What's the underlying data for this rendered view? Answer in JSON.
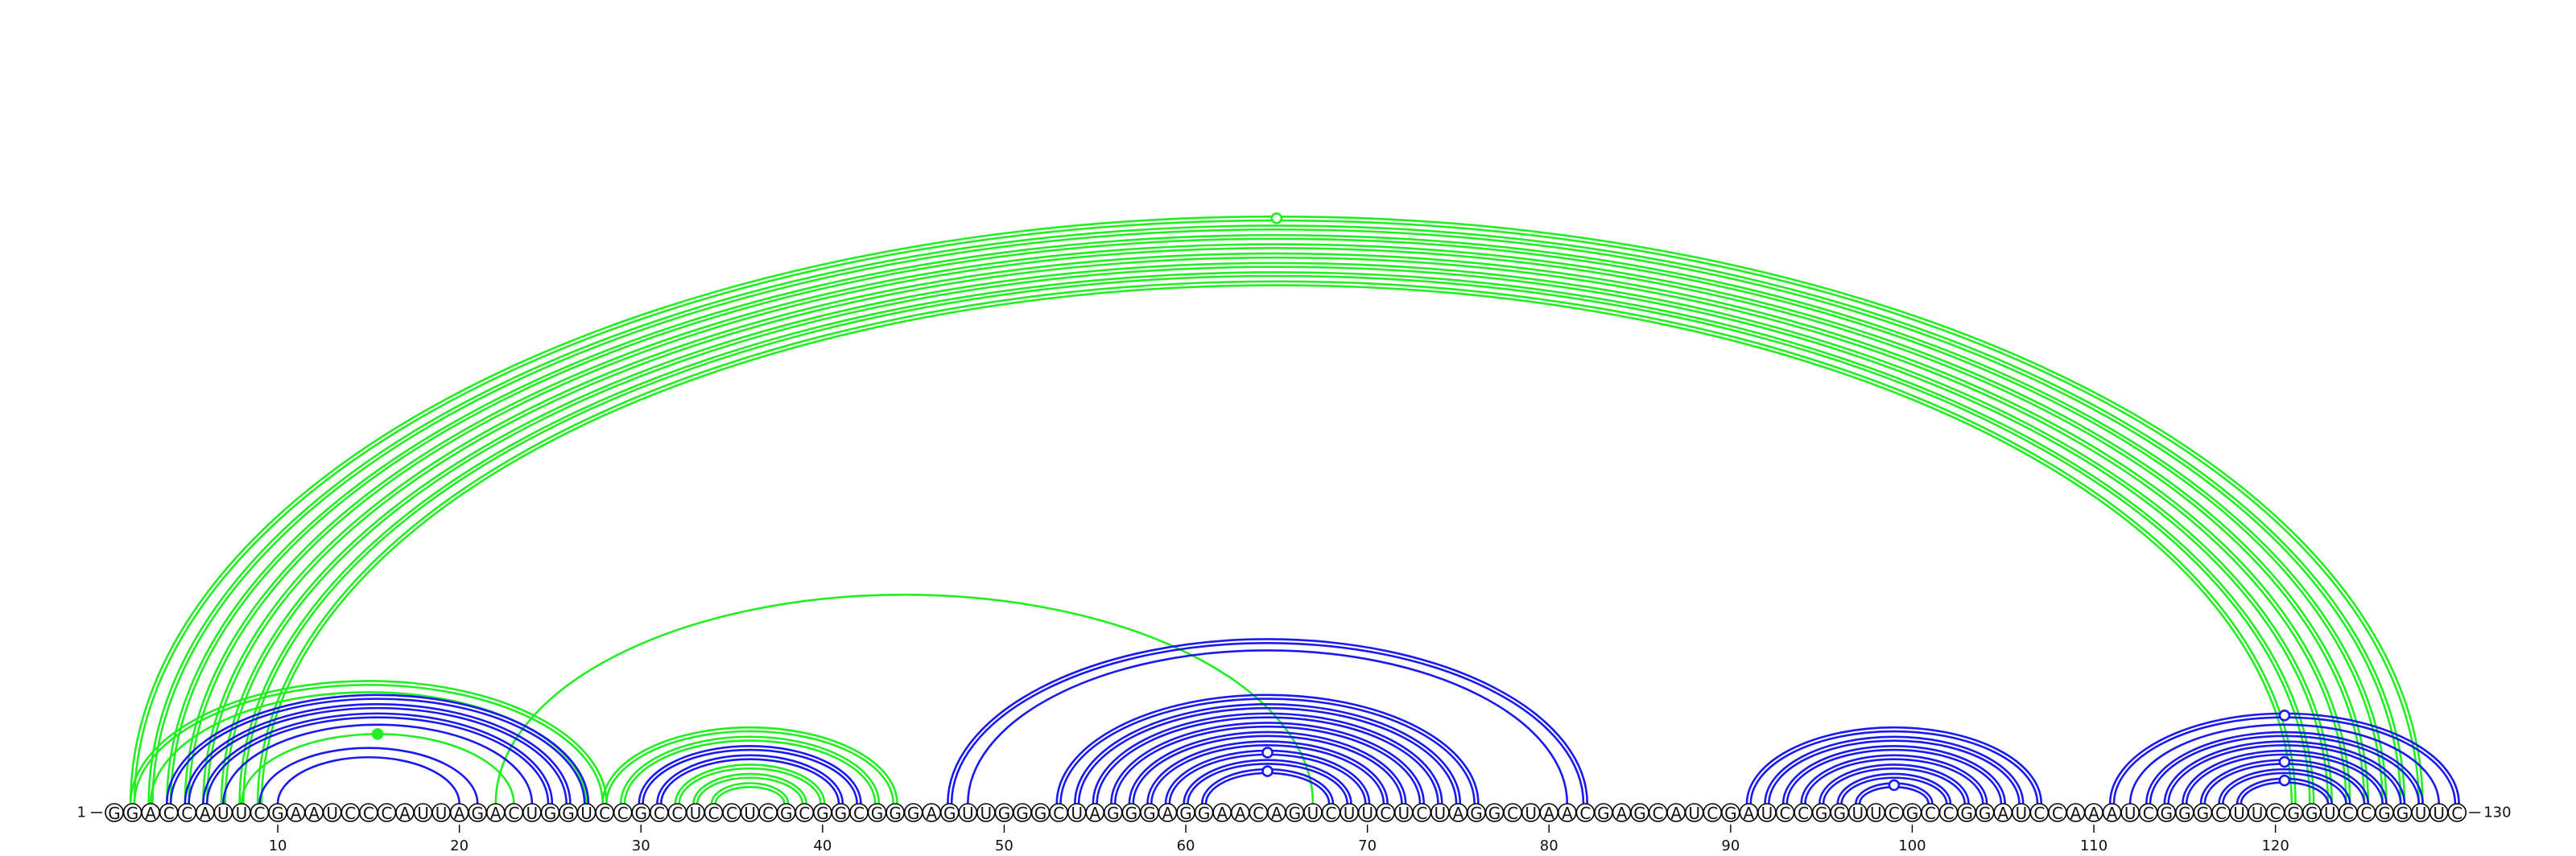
{
  "sequence": "GGACCAUUCGAAUCCCAUUAGACUGGUCCGCCUCCUCGCGGCGGGAGUUGGGCUAGGGAGGAACAGUCUUCUCUAGGCUAACGAGCAUCGAUCCGGUUCGCCGGAUCCAAAUCGGGCUUCGGUCCGGUUC",
  "start_label": "1",
  "end_label": "130",
  "ticks": [
    10,
    20,
    30,
    40,
    50,
    60,
    70,
    80,
    90,
    100,
    110,
    120
  ],
  "colors": {
    "green": "#22ee22",
    "blue": "#1a1aee"
  },
  "arcs": [
    {
      "i": 2,
      "j": 128,
      "color": "green",
      "double": true
    },
    {
      "i": 3,
      "j": 127,
      "color": "green",
      "double": true
    },
    {
      "i": 4,
      "j": 126,
      "color": "green",
      "double": true
    },
    {
      "i": 5,
      "j": 125,
      "color": "green",
      "double": true
    },
    {
      "i": 6,
      "j": 124,
      "color": "green",
      "double": true
    },
    {
      "i": 7,
      "j": 123,
      "color": "green",
      "double": true
    },
    {
      "i": 8,
      "j": 122,
      "color": "green",
      "double": true
    },
    {
      "i": 9,
      "j": 121,
      "color": "green",
      "double": true
    },
    {
      "i": 22,
      "j": 67,
      "color": "green",
      "double": false
    },
    {
      "i": 2,
      "j": 28,
      "color": "green",
      "double": true
    },
    {
      "i": 3,
      "j": 27,
      "color": "green",
      "double": false
    },
    {
      "i": 4,
      "j": 27,
      "color": "blue",
      "double": true
    },
    {
      "i": 5,
      "j": 26,
      "color": "blue",
      "double": true
    },
    {
      "i": 6,
      "j": 25,
      "color": "blue",
      "double": true
    },
    {
      "i": 7,
      "j": 24,
      "color": "blue",
      "double": false
    },
    {
      "i": 8,
      "j": 23,
      "color": "green",
      "double": false
    },
    {
      "i": 9,
      "j": 21,
      "color": "blue",
      "double": false
    },
    {
      "i": 10,
      "j": 20,
      "color": "blue",
      "double": false
    },
    {
      "i": 28,
      "j": 44,
      "color": "green",
      "double": true
    },
    {
      "i": 29,
      "j": 43,
      "color": "green",
      "double": true
    },
    {
      "i": 30,
      "j": 42,
      "color": "blue",
      "double": true
    },
    {
      "i": 31,
      "j": 41,
      "color": "blue",
      "double": true
    },
    {
      "i": 32,
      "j": 40,
      "color": "green",
      "double": true
    },
    {
      "i": 33,
      "j": 39,
      "color": "green",
      "double": true
    },
    {
      "i": 34,
      "j": 38,
      "color": "green",
      "double": true
    },
    {
      "i": 47,
      "j": 82,
      "color": "blue",
      "double": true
    },
    {
      "i": 48,
      "j": 81,
      "color": "blue",
      "double": false
    },
    {
      "i": 53,
      "j": 76,
      "color": "blue",
      "double": true
    },
    {
      "i": 54,
      "j": 75,
      "color": "blue",
      "double": true
    },
    {
      "i": 55,
      "j": 74,
      "color": "blue",
      "double": true
    },
    {
      "i": 56,
      "j": 73,
      "color": "blue",
      "double": true
    },
    {
      "i": 57,
      "j": 72,
      "color": "blue",
      "double": true
    },
    {
      "i": 58,
      "j": 71,
      "color": "blue",
      "double": true
    },
    {
      "i": 59,
      "j": 70,
      "color": "blue",
      "double": true
    },
    {
      "i": 60,
      "j": 69,
      "color": "blue",
      "double": true
    },
    {
      "i": 61,
      "j": 68,
      "color": "blue",
      "double": true
    },
    {
      "i": 91,
      "j": 107,
      "color": "blue",
      "double": true
    },
    {
      "i": 92,
      "j": 106,
      "color": "blue",
      "double": true
    },
    {
      "i": 93,
      "j": 105,
      "color": "blue",
      "double": true
    },
    {
      "i": 94,
      "j": 104,
      "color": "blue",
      "double": true
    },
    {
      "i": 95,
      "j": 103,
      "color": "blue",
      "double": true
    },
    {
      "i": 96,
      "j": 102,
      "color": "blue",
      "double": true
    },
    {
      "i": 97,
      "j": 101,
      "color": "blue",
      "double": true
    },
    {
      "i": 111,
      "j": 130,
      "color": "blue",
      "double": true
    },
    {
      "i": 112,
      "j": 129,
      "color": "blue",
      "double": false
    },
    {
      "i": 113,
      "j": 128,
      "color": "blue",
      "double": true
    },
    {
      "i": 114,
      "j": 127,
      "color": "blue",
      "double": true
    },
    {
      "i": 115,
      "j": 126,
      "color": "blue",
      "double": true
    },
    {
      "i": 116,
      "j": 125,
      "color": "blue",
      "double": true
    },
    {
      "i": 117,
      "j": 124,
      "color": "blue",
      "double": true
    },
    {
      "i": 118,
      "j": 123,
      "color": "blue",
      "double": true
    }
  ],
  "markers": [
    {
      "i": 2,
      "j": 128,
      "color": "green",
      "filled": false
    },
    {
      "i": 8,
      "j": 23,
      "color": "green",
      "filled": true
    },
    {
      "i": 59,
      "j": 70,
      "color": "blue",
      "filled": false
    },
    {
      "i": 61,
      "j": 68,
      "color": "blue",
      "filled": false
    },
    {
      "i": 97,
      "j": 101,
      "color": "blue",
      "filled": false
    },
    {
      "i": 111,
      "j": 130,
      "color": "blue",
      "filled": false
    },
    {
      "i": 116,
      "j": 125,
      "color": "blue",
      "filled": false
    },
    {
      "i": 118,
      "j": 123,
      "color": "blue",
      "filled": false
    }
  ]
}
